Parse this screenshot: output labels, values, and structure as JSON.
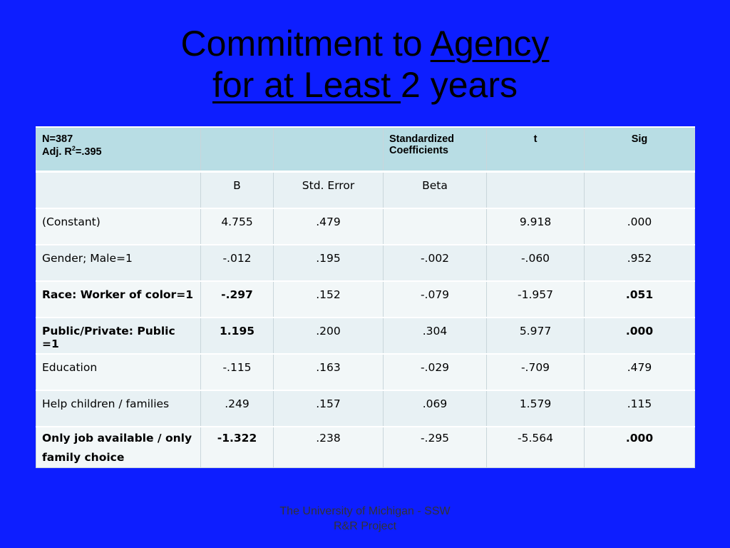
{
  "title": {
    "line1_plain": "Commitment to ",
    "line1_underlined": "Agency",
    "line2_underlined": "for at Least ",
    "line2_plain": " 2 years"
  },
  "table": {
    "header": {
      "n_label": "N=387",
      "adj_prefix": "Adj. R",
      "adj_sup": "2",
      "adj_value": "=.395",
      "col_b": "",
      "col_se": "",
      "col_std_line1": "Standardized",
      "col_std_line2": "Coefficients",
      "col_t": "t",
      "col_sig": "Sig"
    },
    "subheader": {
      "label": "",
      "b": "B",
      "se": "Std. Error",
      "beta": "Beta",
      "t": "",
      "sig": ""
    },
    "rows": [
      {
        "label": "(Constant)",
        "b": "4.755",
        "se": ".479",
        "beta": "",
        "t": "9.918",
        "sig": ".000"
      },
      {
        "label": "Gender; Male=1",
        "b": "-.012",
        "se": ".195",
        "beta": "-.002",
        "t": "-.060",
        "sig": ".952"
      },
      {
        "label": "Race: Worker of color=1",
        "b": "-.297",
        "se": ".152",
        "beta": "-.079",
        "t": "-1.957",
        "sig": ".051"
      },
      {
        "label": "Public/Private: Public =1",
        "b": "1.195",
        "se": ".200",
        "beta": ".304",
        "t": "5.977",
        "sig": ".000"
      },
      {
        "label": "Education",
        "b": "-.115",
        "se": ".163",
        "beta": "-.029",
        "t": "-.709",
        "sig": ".479"
      },
      {
        "label": "Help children / families",
        "b": ".249",
        "se": ".157",
        "beta": ".069",
        "t": "1.579",
        "sig": ".115"
      },
      {
        "label_line1": "Only job available / only",
        "label_line2": "family choice",
        "b": "-1.322",
        "se": ".238",
        "beta": "-.295",
        "t": "-5.564",
        "sig": ".000"
      }
    ]
  },
  "footer": {
    "line1": "The University of Michigan - SSW",
    "line2": "R&R Project"
  }
}
